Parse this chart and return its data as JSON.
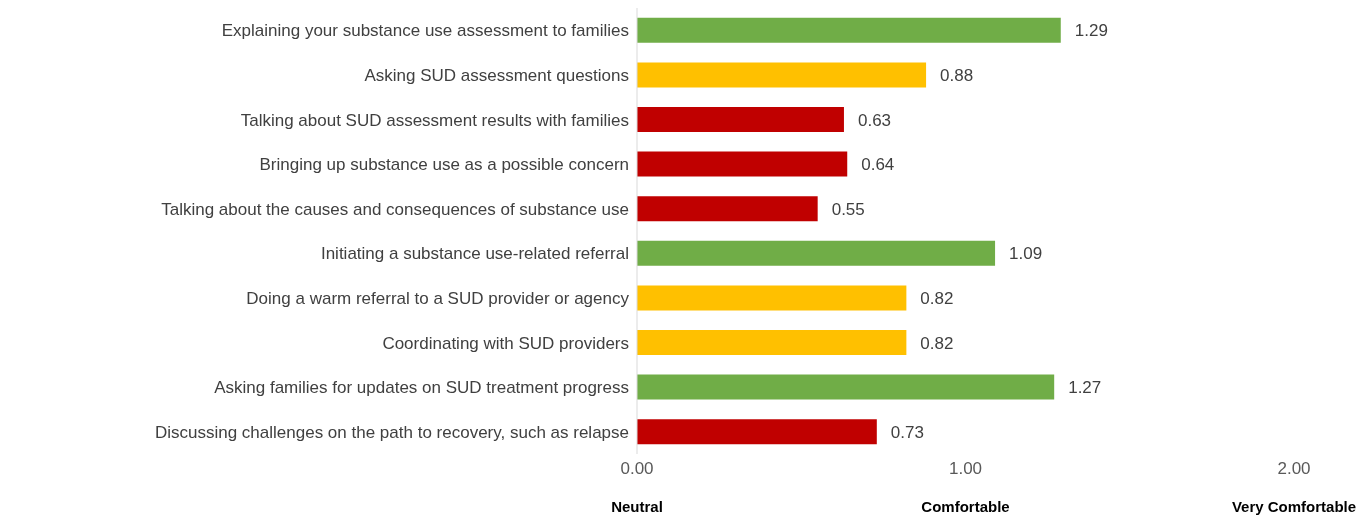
{
  "chart_data": {
    "type": "bar",
    "orientation": "horizontal",
    "categories": [
      "Explaining your substance use assessment to families",
      "Asking SUD assessment questions",
      "Talking about SUD assessment results with families",
      "Bringing up substance use as a possible concern",
      "Talking about the causes and consequences of substance use",
      "Initiating a substance use-related referral",
      "Doing a warm referral to a SUD provider or agency",
      "Coordinating with SUD providers",
      "Asking families for updates on SUD treatment progress",
      "Discussing challenges on the path to recovery, such as relapse"
    ],
    "values": [
      1.29,
      0.88,
      0.63,
      0.64,
      0.55,
      1.09,
      0.82,
      0.82,
      1.27,
      0.73
    ],
    "colors": [
      "#70ad47",
      "#ffc000",
      "#c00000",
      "#c00000",
      "#c00000",
      "#70ad47",
      "#ffc000",
      "#ffc000",
      "#70ad47",
      "#c00000"
    ],
    "xlim": [
      0,
      2
    ],
    "xticks": [
      {
        "value": 0,
        "label": "0.00"
      },
      {
        "value": 1,
        "label": "1.00"
      },
      {
        "value": 2,
        "label": "2.00"
      }
    ],
    "annotations": [
      "Neutral",
      "Comfortable",
      "Very Comfortable"
    ],
    "data_labels": true,
    "grid": false,
    "legend": false
  }
}
